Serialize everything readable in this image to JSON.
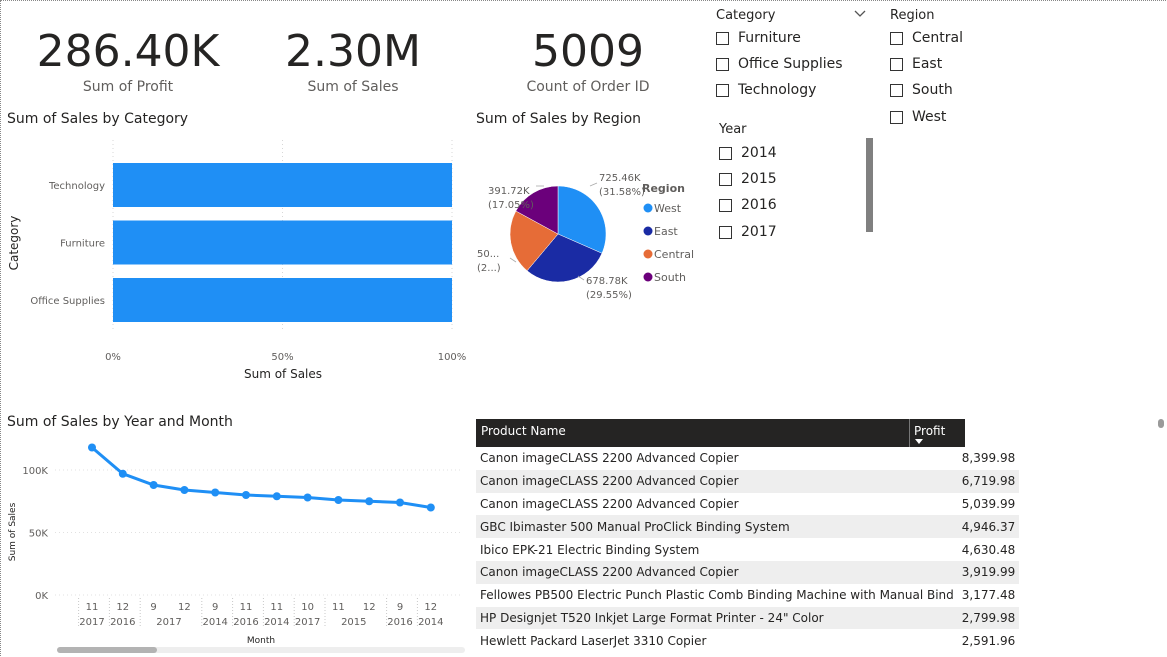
{
  "kpis": [
    {
      "value": "286.40K",
      "label": "Sum of Profit"
    },
    {
      "value": "2.30M",
      "label": "Sum of Sales"
    },
    {
      "value": "5009",
      "label": "Count of Order ID"
    }
  ],
  "category_slicer": {
    "title": "Category",
    "items": [
      "Furniture",
      "Office Supplies",
      "Technology"
    ]
  },
  "region_slicer": {
    "title": "Region",
    "items": [
      "Central",
      "East",
      "South",
      "West"
    ]
  },
  "year_slicer": {
    "title": "Year",
    "items": [
      "2014",
      "2015",
      "2016",
      "2017"
    ]
  },
  "bar_visual": {
    "title": "Sum of Sales by Category"
  },
  "pie_visual": {
    "title": "Sum of Sales by Region"
  },
  "line_visual": {
    "title": "Sum of Sales by Year and Month"
  },
  "table_visual": {
    "columns": [
      "Product Name",
      "Profit"
    ],
    "rows": [
      [
        "Canon imageCLASS 2200 Advanced Copier",
        "8,399.98"
      ],
      [
        "Canon imageCLASS 2200 Advanced Copier",
        "6,719.98"
      ],
      [
        "Canon imageCLASS 2200 Advanced Copier",
        "5,039.99"
      ],
      [
        "GBC Ibimaster 500 Manual ProClick Binding System",
        "4,946.37"
      ],
      [
        "Ibico EPK-21 Electric Binding System",
        "4,630.48"
      ],
      [
        "Canon imageCLASS 2200 Advanced Copier",
        "3,919.99"
      ],
      [
        "Fellowes PB500 Electric Punch Plastic Comb Binding Machine with Manual Bind",
        "3,177.48"
      ],
      [
        "HP Designjet T520 Inkjet Large Format Printer - 24\" Color",
        "2,799.98"
      ],
      [
        "Hewlett Packard LaserJet 3310 Copier",
        "2,591.96"
      ]
    ]
  },
  "colors": {
    "bar": "#1f8ff5",
    "west": "#1f8ff5",
    "east": "#1a2ba4",
    "central": "#e66c37",
    "south": "#6b007b",
    "header_bg": "#252423"
  },
  "chart_data": [
    {
      "type": "bar",
      "title": "Sum of Sales by Category",
      "xlabel": "Sum of Sales",
      "ylabel": "Category",
      "categories": [
        "Technology",
        "Furniture",
        "Office Supplies"
      ],
      "values": [
        100,
        100,
        100
      ],
      "x_ticks": [
        "0%",
        "50%",
        "100%"
      ],
      "xlim": [
        0,
        100
      ],
      "grid": true
    },
    {
      "type": "pie",
      "title": "Sum of Sales by Region",
      "legend_title": "Region",
      "legend_position": "right",
      "slices": [
        {
          "name": "West",
          "value": 725.46,
          "label": "725.46K",
          "pct": "(31.58%)",
          "color": "#1f8ff5"
        },
        {
          "name": "East",
          "value": 678.78,
          "label": "678.78K",
          "pct": "(29.55%)",
          "color": "#1a2ba4"
        },
        {
          "name": "Central",
          "value": 501.24,
          "label": "50...",
          "pct": "(2...)",
          "color": "#e66c37"
        },
        {
          "name": "South",
          "value": 391.72,
          "label": "391.72K",
          "pct": "(17.05%)",
          "color": "#6b007b"
        }
      ]
    },
    {
      "type": "line",
      "title": "Sum of Sales by Year and Month",
      "xlabel": "Month",
      "ylabel": "Sum of Sales",
      "y_ticks": [
        "0K",
        "50K",
        "100K"
      ],
      "ylim": [
        0,
        100
      ],
      "x": [
        {
          "month": "11",
          "year": "2017"
        },
        {
          "month": "12",
          "year": "2016"
        },
        {
          "month": "9",
          "year": "2017"
        },
        {
          "month": "12",
          "year": "2017"
        },
        {
          "month": "9",
          "year": "2014"
        },
        {
          "month": "11",
          "year": "2016"
        },
        {
          "month": "11",
          "year": "2014"
        },
        {
          "month": "10",
          "year": "2017"
        },
        {
          "month": "11",
          "year": "2015"
        },
        {
          "month": "12",
          "year": "2015"
        },
        {
          "month": "9",
          "year": "2016"
        },
        {
          "month": "12",
          "year": "2014"
        }
      ],
      "year_groups": [
        {
          "label": "2017",
          "start": 0,
          "end": 0
        },
        {
          "label": "2016",
          "start": 1,
          "end": 1
        },
        {
          "label": "2017",
          "start": 2,
          "end": 3
        },
        {
          "label": "2014",
          "start": 4,
          "end": 4
        },
        {
          "label": "2016",
          "start": 5,
          "end": 5
        },
        {
          "label": "2014",
          "start": 6,
          "end": 6
        },
        {
          "label": "2017",
          "start": 7,
          "end": 7
        },
        {
          "label": "2015",
          "start": 8,
          "end": 9
        },
        {
          "label": "2016",
          "start": 10,
          "end": 10
        },
        {
          "label": "2014",
          "start": 11,
          "end": 11
        }
      ],
      "values": [
        118,
        97,
        88,
        84,
        82,
        80,
        79,
        78,
        76,
        75,
        74,
        70
      ]
    }
  ]
}
